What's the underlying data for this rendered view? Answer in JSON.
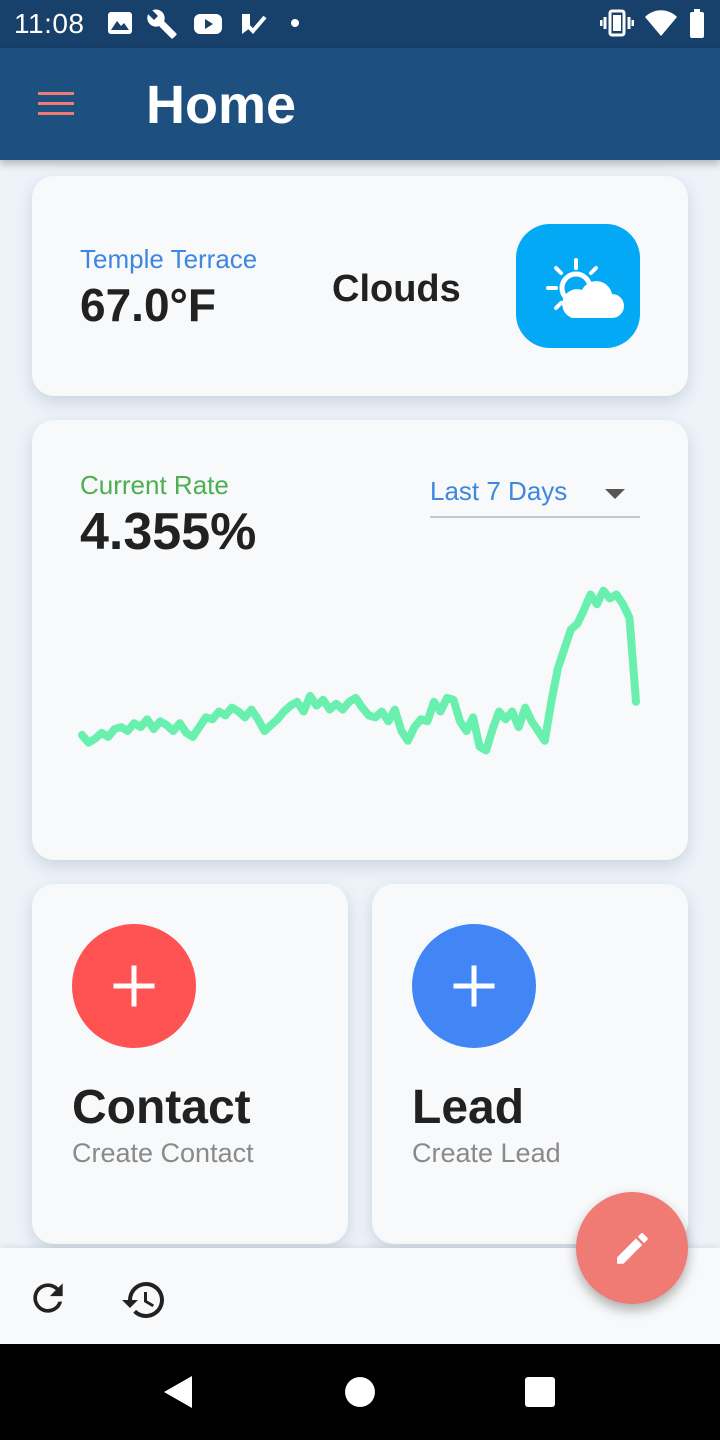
{
  "status_bar": {
    "time": "11:08",
    "left_icons": [
      "image-icon",
      "wrench-icon",
      "youtube-icon",
      "check-icon",
      "dot-icon"
    ],
    "right_icons": [
      "vibrate-icon",
      "wifi-icon",
      "battery-icon"
    ]
  },
  "app_bar": {
    "title": "Home",
    "menu_icon": "hamburger-menu-icon",
    "menu_color": "#f07a74"
  },
  "weather": {
    "location": "Temple Terrace",
    "temperature": "67.0°F",
    "condition": "Clouds",
    "icon": "partly-cloudy-icon",
    "badge_color": "#03a9f4"
  },
  "rate": {
    "label": "Current Rate",
    "value": "4.355%",
    "range_selected": "Last 7 Days",
    "line_color": "#69f0ae",
    "series": [
      0.18,
      0.14,
      0.16,
      0.19,
      0.17,
      0.21,
      0.22,
      0.2,
      0.24,
      0.22,
      0.26,
      0.21,
      0.25,
      0.23,
      0.2,
      0.24,
      0.19,
      0.17,
      0.22,
      0.27,
      0.26,
      0.3,
      0.28,
      0.32,
      0.3,
      0.27,
      0.31,
      0.26,
      0.2,
      0.23,
      0.26,
      0.3,
      0.33,
      0.35,
      0.3,
      0.38,
      0.33,
      0.36,
      0.31,
      0.34,
      0.31,
      0.35,
      0.37,
      0.32,
      0.28,
      0.27,
      0.3,
      0.25,
      0.31,
      0.2,
      0.15,
      0.22,
      0.26,
      0.25,
      0.35,
      0.3,
      0.37,
      0.36,
      0.25,
      0.2,
      0.27,
      0.12,
      0.1,
      0.21,
      0.3,
      0.26,
      0.3,
      0.22,
      0.32,
      0.25,
      0.2,
      0.15,
      0.35,
      0.52,
      0.62,
      0.72,
      0.75,
      0.82,
      0.9,
      0.85,
      0.92,
      0.88,
      0.9,
      0.85,
      0.78,
      0.35
    ]
  },
  "actions": [
    {
      "title": "Contact",
      "subtitle": "Create Contact",
      "color": "#ff5252",
      "icon": "plus-icon"
    },
    {
      "title": "Lead",
      "subtitle": "Create Lead",
      "color": "#4285f4",
      "icon": "plus-icon"
    }
  ],
  "bottom_bar": {
    "icons": [
      "refresh-icon",
      "history-icon"
    ]
  },
  "fab": {
    "icon": "edit-pencil-icon",
    "color": "#f07a74"
  },
  "nav": {
    "icons": [
      "back-icon",
      "home-icon",
      "recents-icon"
    ]
  }
}
